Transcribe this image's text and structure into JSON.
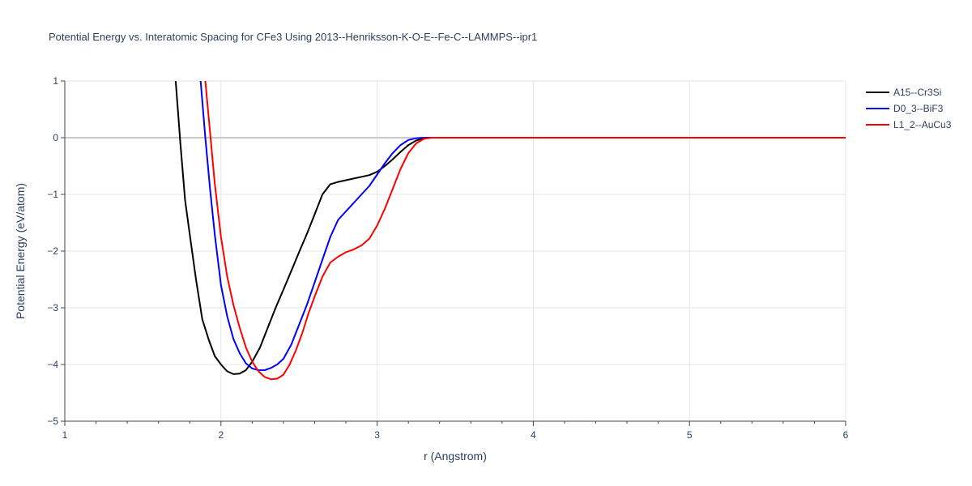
{
  "chart_data": {
    "type": "line",
    "title": "Potential Energy vs. Interatomic Spacing for CFe3 Using 2013--Henriksson-K-O-E--Fe-C--LAMMPS--ipr1",
    "xlabel": "r (Angstrom)",
    "ylabel": "Potential Energy (eV/atom)",
    "xlim": [
      1,
      6
    ],
    "ylim": [
      -5,
      1
    ],
    "xticks": [
      1,
      2,
      3,
      4,
      5,
      6
    ],
    "xtick_labels": [
      "1",
      "2",
      "3",
      "4",
      "5",
      "6"
    ],
    "yticks": [
      1,
      0,
      -1,
      -2,
      -3,
      -4,
      -5
    ],
    "ytick_labels": [
      "1",
      "0",
      "−1",
      "−2",
      "−3",
      "−4",
      "−5"
    ],
    "grid": true,
    "legend_position": "top-right",
    "series": [
      {
        "name": "A15--Cr3Si",
        "color": "#000000",
        "x": [
          1.71,
          1.74,
          1.77,
          1.8,
          1.84,
          1.88,
          1.92,
          1.96,
          2.0,
          2.04,
          2.08,
          2.12,
          2.16,
          2.2,
          2.25,
          2.3,
          2.35,
          2.4,
          2.45,
          2.5,
          2.55,
          2.6,
          2.65,
          2.7,
          2.75,
          2.8,
          2.85,
          2.9,
          2.95,
          3.0,
          3.05,
          3.1,
          3.15,
          3.2,
          3.25,
          3.3,
          3.35,
          3.4,
          3.5,
          4.0,
          5.0,
          6.0
        ],
        "y": [
          1.0,
          -0.1,
          -1.1,
          -1.7,
          -2.5,
          -3.2,
          -3.55,
          -3.85,
          -4.0,
          -4.12,
          -4.17,
          -4.16,
          -4.1,
          -3.95,
          -3.7,
          -3.35,
          -3.0,
          -2.68,
          -2.35,
          -2.02,
          -1.7,
          -1.35,
          -1.0,
          -0.82,
          -0.78,
          -0.75,
          -0.72,
          -0.69,
          -0.66,
          -0.6,
          -0.5,
          -0.38,
          -0.25,
          -0.13,
          -0.05,
          -0.01,
          0.0,
          0.0,
          0.0,
          0.0,
          0.0,
          0.0
        ]
      },
      {
        "name": "D0_3--BiF3",
        "color": "#0000ff",
        "x": [
          1.87,
          1.9,
          1.93,
          1.96,
          2.0,
          2.04,
          2.08,
          2.12,
          2.16,
          2.2,
          2.24,
          2.28,
          2.32,
          2.36,
          2.4,
          2.45,
          2.5,
          2.55,
          2.6,
          2.65,
          2.7,
          2.75,
          2.8,
          2.85,
          2.9,
          2.95,
          3.0,
          3.05,
          3.1,
          3.15,
          3.2,
          3.25,
          3.3,
          3.35,
          3.4,
          3.5,
          4.0,
          5.0,
          6.0
        ],
        "y": [
          1.0,
          0.0,
          -0.9,
          -1.7,
          -2.6,
          -3.15,
          -3.55,
          -3.8,
          -3.98,
          -4.07,
          -4.1,
          -4.1,
          -4.06,
          -4.0,
          -3.9,
          -3.65,
          -3.3,
          -2.95,
          -2.55,
          -2.15,
          -1.75,
          -1.45,
          -1.3,
          -1.15,
          -1.0,
          -0.85,
          -0.65,
          -0.45,
          -0.27,
          -0.13,
          -0.04,
          -0.01,
          0.0,
          0.0,
          0.0,
          0.0,
          0.0,
          0.0,
          0.0
        ]
      },
      {
        "name": "L1_2--AuCu3",
        "color": "#ff0000",
        "x": [
          1.9,
          1.93,
          1.96,
          2.0,
          2.04,
          2.08,
          2.12,
          2.16,
          2.2,
          2.24,
          2.28,
          2.32,
          2.36,
          2.4,
          2.44,
          2.48,
          2.52,
          2.56,
          2.6,
          2.65,
          2.7,
          2.75,
          2.8,
          2.85,
          2.9,
          2.95,
          3.0,
          3.05,
          3.1,
          3.15,
          3.2,
          3.25,
          3.3,
          3.35,
          3.4,
          3.5,
          4.0,
          5.0,
          6.0
        ],
        "y": [
          1.0,
          0.1,
          -0.8,
          -1.75,
          -2.45,
          -2.95,
          -3.35,
          -3.7,
          -3.95,
          -4.12,
          -4.22,
          -4.26,
          -4.25,
          -4.18,
          -4.0,
          -3.75,
          -3.45,
          -3.1,
          -2.8,
          -2.45,
          -2.2,
          -2.1,
          -2.02,
          -1.97,
          -1.9,
          -1.78,
          -1.55,
          -1.25,
          -0.9,
          -0.55,
          -0.27,
          -0.1,
          -0.02,
          0.0,
          0.0,
          0.0,
          0.0,
          0.0,
          0.0
        ]
      }
    ]
  }
}
